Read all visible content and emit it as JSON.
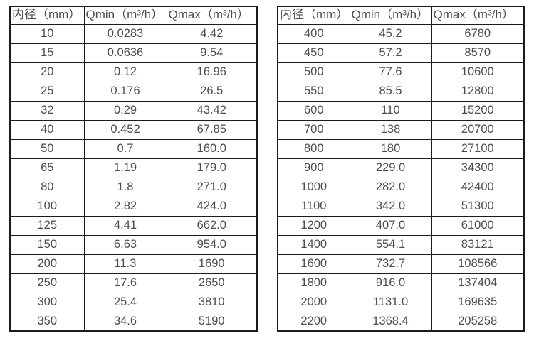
{
  "colors": {
    "background": "#ffffff",
    "border": "#1c1c1c",
    "text": "#4d4d4d"
  },
  "chart_data": [
    {
      "type": "table",
      "title": "",
      "headers": [
        "内径（mm）",
        "Qmin（m³/h）",
        "Qmax（m³/h）"
      ],
      "rows": [
        [
          "10",
          "0.0283",
          "4.42"
        ],
        [
          "15",
          "0.0636",
          "9.54"
        ],
        [
          "20",
          "0.12",
          "16.96"
        ],
        [
          "25",
          "0.176",
          "26.5"
        ],
        [
          "32",
          "0.29",
          "43.42"
        ],
        [
          "40",
          "0.452",
          "67.85"
        ],
        [
          "50",
          "0.7",
          "160.0"
        ],
        [
          "65",
          "1.19",
          "179.0"
        ],
        [
          "80",
          "1.8",
          "271.0"
        ],
        [
          "100",
          "2.82",
          "424.0"
        ],
        [
          "125",
          "4.41",
          "662.0"
        ],
        [
          "150",
          "6.63",
          "954.0"
        ],
        [
          "200",
          "11.3",
          "1690"
        ],
        [
          "250",
          "17.6",
          "2650"
        ],
        [
          "300",
          "25.4",
          "3810"
        ],
        [
          "350",
          "34.6",
          "5190"
        ]
      ]
    },
    {
      "type": "table",
      "title": "",
      "headers": [
        "内径（mm）",
        "Qmin（m³/h）",
        "Qmax（m³/h）"
      ],
      "rows": [
        [
          "400",
          "45.2",
          "6780"
        ],
        [
          "450",
          "57.2",
          "8570"
        ],
        [
          "500",
          "77.6",
          "10600"
        ],
        [
          "550",
          "85.5",
          "12800"
        ],
        [
          "600",
          "110",
          "15200"
        ],
        [
          "700",
          "138",
          "20700"
        ],
        [
          "800",
          "180",
          "27100"
        ],
        [
          "900",
          "229.0",
          "34300"
        ],
        [
          "1000",
          "282.0",
          "42400"
        ],
        [
          "1100",
          "342.0",
          "51300"
        ],
        [
          "1200",
          "407.0",
          "61000"
        ],
        [
          "1400",
          "554.1",
          "83121"
        ],
        [
          "1600",
          "732.7",
          "108566"
        ],
        [
          "1800",
          "916.0",
          "137404"
        ],
        [
          "2000",
          "1131.0",
          "169635"
        ],
        [
          "2200",
          "1368.4",
          "205258"
        ]
      ]
    }
  ]
}
